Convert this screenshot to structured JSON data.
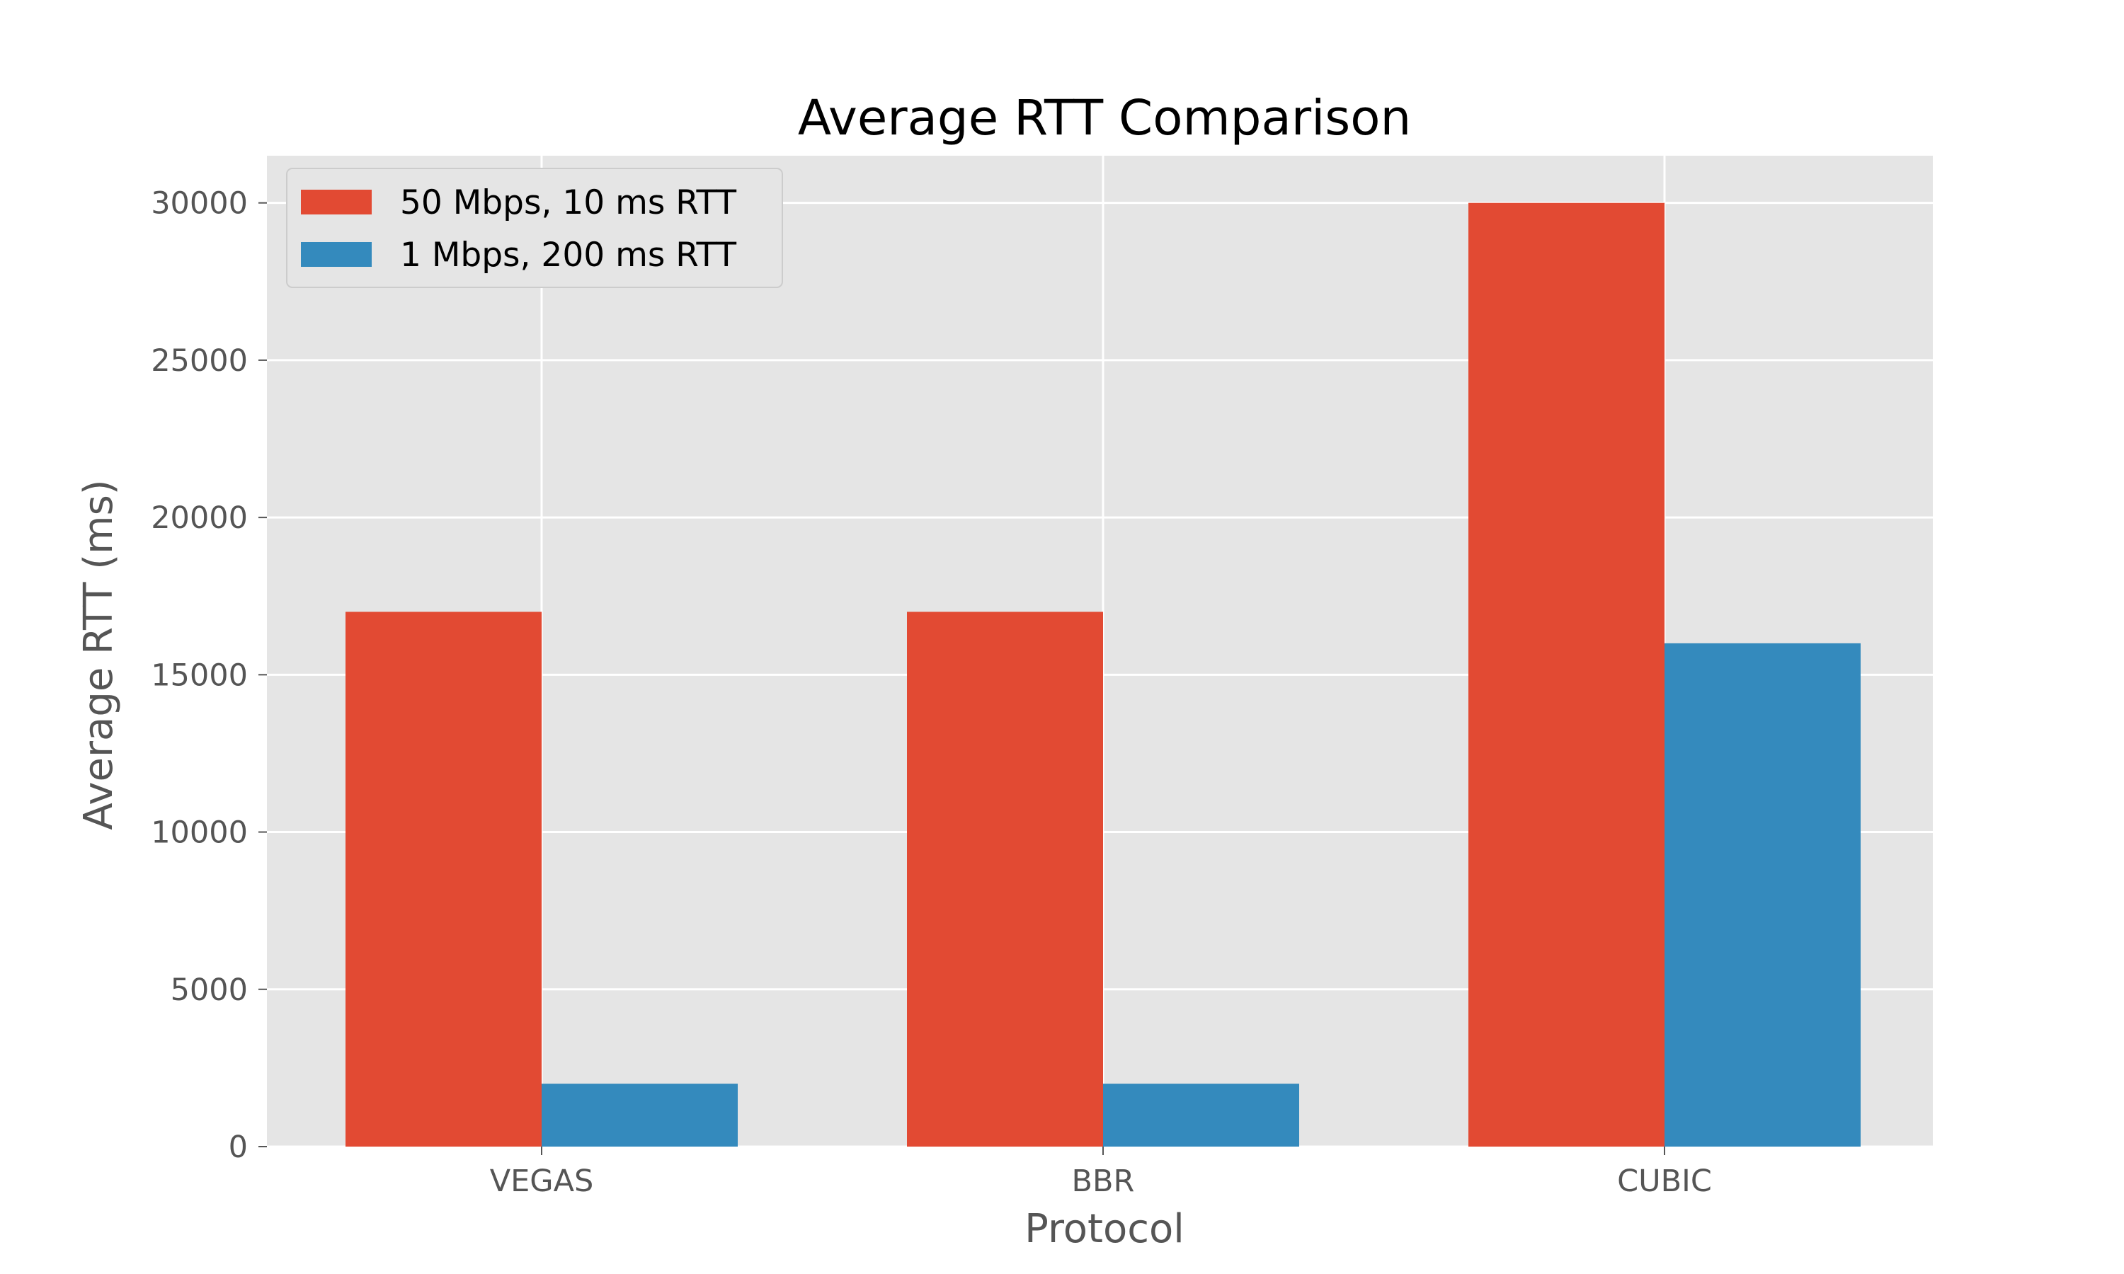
{
  "chart_data": {
    "type": "bar",
    "title": "Average RTT Comparison",
    "xlabel": "Protocol",
    "ylabel": "Average RTT (ms)",
    "categories": [
      "VEGAS",
      "BBR",
      "CUBIC"
    ],
    "series": [
      {
        "name": "50 Mbps, 10 ms RTT",
        "color": "#E24A33",
        "values": [
          17000,
          17000,
          30000
        ]
      },
      {
        "name": "1 Mbps, 200 ms RTT",
        "color": "#348ABD",
        "values": [
          2000,
          2000,
          16000
        ]
      }
    ],
    "ylim": [
      0,
      31500
    ],
    "yticks": [
      0,
      5000,
      10000,
      15000,
      20000,
      25000,
      30000
    ],
    "grid": true,
    "legend_position": "top-left",
    "style": {
      "plot_background": "#E5E5E5",
      "grid_color": "#FFFFFF"
    }
  }
}
